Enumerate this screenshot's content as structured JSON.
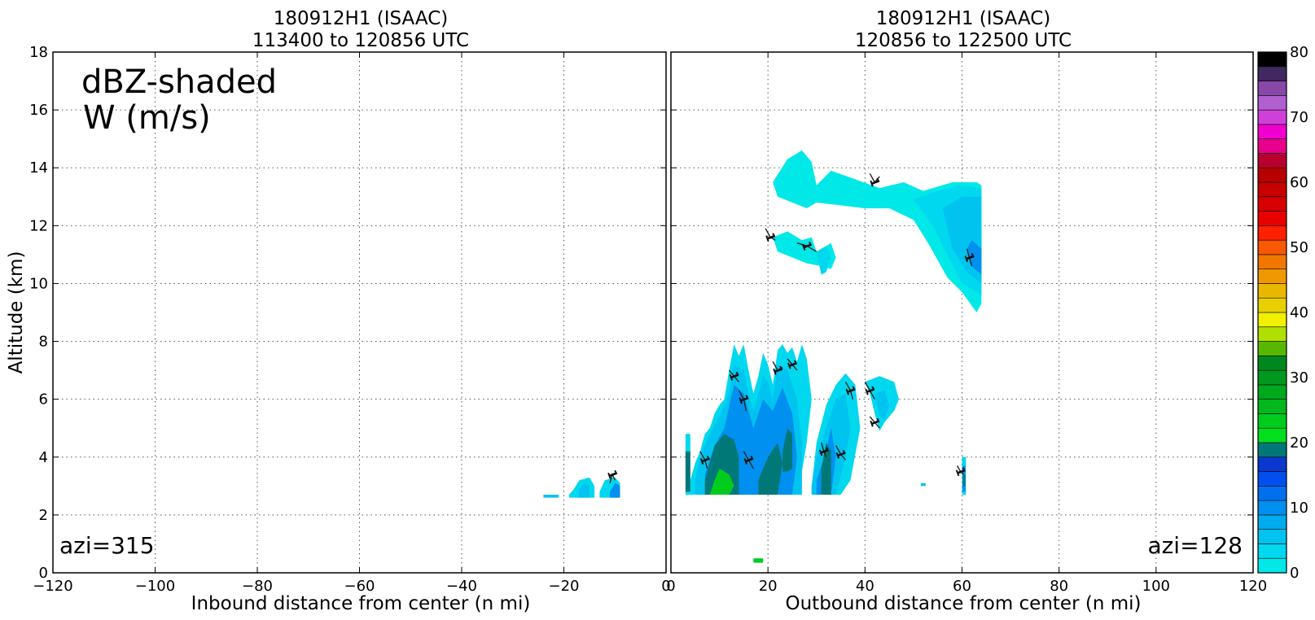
{
  "chart_data": [
    {
      "type": "heatmap",
      "panel": "left",
      "title": [
        "180912H1 (ISAAC)",
        "113400 to 120856 UTC"
      ],
      "xlabel": "Inbound distance from center (n mi)",
      "ylabel": "Altitude (km)",
      "xlim": [
        -120,
        0
      ],
      "ylim": [
        0,
        18
      ],
      "xticks": [
        "−120",
        "−100",
        "−80",
        "−60",
        "−40",
        "−20",
        "0"
      ],
      "yticks": [
        "0",
        "2",
        "4",
        "6",
        "8",
        "10",
        "12",
        "14",
        "16",
        "18"
      ],
      "grid": true,
      "annotations": [
        "dBZ-shaded",
        "W (m/s)",
        "azi=315"
      ],
      "reflectivity_regions": [
        {
          "dbz": 5,
          "x": [
            -24,
            -21,
            -21,
            -24
          ],
          "y": [
            2.6,
            2.6,
            2.7,
            2.7
          ]
        },
        {
          "dbz": 3,
          "x": [
            -19,
            -14,
            -14,
            -15,
            -17,
            -18,
            -19
          ],
          "y": [
            2.6,
            2.6,
            3.0,
            3.3,
            3.2,
            2.9,
            2.7
          ]
        },
        {
          "dbz": 7,
          "x": [
            -17,
            -15,
            -15,
            -16,
            -17
          ],
          "y": [
            2.6,
            2.6,
            3.0,
            3.1,
            2.9
          ]
        },
        {
          "dbz": 3,
          "x": [
            -13,
            -9,
            -9,
            -10,
            -12,
            -13
          ],
          "y": [
            2.6,
            2.6,
            3.1,
            3.3,
            3.2,
            2.8
          ]
        },
        {
          "dbz": 10,
          "x": [
            -11,
            -9,
            -9,
            -10,
            -11
          ],
          "y": [
            2.6,
            2.6,
            3.0,
            3.1,
            2.8
          ]
        }
      ],
      "w_contours": [
        {
          "label": "1",
          "x": [
            -11,
            -10.5,
            -10
          ],
          "y": [
            3.1,
            3.4,
            3.2
          ]
        }
      ]
    },
    {
      "type": "heatmap",
      "panel": "right",
      "title": [
        "180912H1 (ISAAC)",
        "120856 to 122500 UTC"
      ],
      "xlabel": "Outbound distance from center (n mi)",
      "ylabel": "",
      "xlim": [
        0,
        120
      ],
      "ylim": [
        0,
        18
      ],
      "xticks": [
        "0",
        "20",
        "40",
        "60",
        "80",
        "100",
        "120"
      ],
      "yticks": [
        "0",
        "2",
        "4",
        "6",
        "8",
        "10",
        "12",
        "14",
        "16",
        "18"
      ],
      "grid": true,
      "annotations": [
        "azi=128"
      ],
      "reflectivity_regions": [
        {
          "dbz": 0,
          "x": [
            21,
            24,
            27,
            29,
            30,
            33,
            38,
            43,
            48,
            52,
            58,
            63,
            64,
            64,
            63,
            60,
            57,
            55,
            53,
            50,
            45,
            40,
            35,
            30,
            28,
            25,
            22,
            21
          ],
          "y": [
            13.5,
            14.3,
            14.6,
            14.2,
            13.4,
            13.9,
            13.6,
            13.3,
            13.5,
            13.2,
            13.5,
            13.5,
            13.4,
            9.3,
            9.0,
            9.7,
            10.2,
            10.8,
            11.4,
            12.2,
            12.6,
            12.6,
            12.7,
            12.8,
            12.6,
            12.8,
            13.0,
            13.5
          ]
        },
        {
          "dbz": 3,
          "x": [
            50,
            55,
            60,
            64,
            64,
            60,
            57,
            54,
            50
          ],
          "y": [
            12.9,
            13.2,
            13.4,
            13.3,
            9.6,
            10.0,
            11.0,
            12.0,
            12.9
          ]
        },
        {
          "dbz": 5,
          "x": [
            56,
            60,
            64,
            64,
            61,
            58,
            56
          ],
          "y": [
            12.6,
            13.0,
            13.0,
            10.0,
            10.4,
            11.2,
            12.6
          ]
        },
        {
          "dbz": 7,
          "x": [
            58,
            61,
            64,
            64,
            62,
            60,
            58
          ],
          "y": [
            12.0,
            12.4,
            12.0,
            10.2,
            10.4,
            11.0,
            12.0
          ]
        },
        {
          "dbz": 10,
          "x": [
            61,
            62,
            64,
            64,
            62,
            61
          ],
          "y": [
            11.2,
            11.5,
            11.2,
            10.3,
            10.6,
            11.2
          ]
        },
        {
          "dbz": 0,
          "x": [
            21,
            24,
            27,
            29,
            30,
            33,
            34,
            33,
            31,
            28,
            25,
            22,
            21
          ],
          "y": [
            11.6,
            11.8,
            11.5,
            11.6,
            11.1,
            11.4,
            10.9,
            10.5,
            10.6,
            10.7,
            10.9,
            11.1,
            11.6
          ]
        },
        {
          "dbz": 3,
          "x": [
            30,
            32,
            33,
            32,
            31,
            30
          ],
          "y": [
            11.1,
            11.3,
            10.9,
            10.4,
            10.3,
            11.1
          ]
        },
        {
          "dbz": 3,
          "x": [
            3,
            4,
            4,
            3
          ],
          "y": [
            2.7,
            2.7,
            4.8,
            4.8
          ]
        },
        {
          "dbz": 3,
          "x": [
            4,
            6,
            8,
            10,
            11,
            12,
            13,
            14,
            15,
            16,
            17,
            19,
            21,
            23,
            25,
            26,
            27,
            28,
            29,
            28,
            27,
            26,
            25,
            24,
            23,
            22,
            21,
            20,
            19,
            18,
            17,
            16,
            15,
            14,
            13,
            12,
            11,
            10,
            9,
            8,
            7,
            6,
            5,
            4
          ],
          "y": [
            2.7,
            2.7,
            2.7,
            2.7,
            2.7,
            2.7,
            2.7,
            2.7,
            2.7,
            2.7,
            2.7,
            2.7,
            2.7,
            2.7,
            2.7,
            2.7,
            3.5,
            4.5,
            6.0,
            7.4,
            7.9,
            7.3,
            7.8,
            7.6,
            7.9,
            7.7,
            6.5,
            7.2,
            7.6,
            6.8,
            6.2,
            7.0,
            7.9,
            7.5,
            7.9,
            7.0,
            6.0,
            5.8,
            5.5,
            5.0,
            4.8,
            4.2,
            3.8,
            3.2
          ]
        },
        {
          "dbz": 7,
          "x": [
            5,
            7,
            9,
            11,
            13,
            15,
            17,
            19,
            21,
            23,
            25,
            27,
            27,
            26,
            24,
            22,
            21,
            20,
            19,
            17,
            16,
            15,
            13,
            12,
            10,
            8,
            6,
            5
          ],
          "y": [
            2.7,
            2.7,
            2.7,
            2.7,
            2.7,
            2.7,
            2.7,
            2.7,
            2.7,
            2.7,
            2.7,
            2.7,
            4.5,
            6.0,
            7.0,
            7.2,
            6.0,
            6.6,
            6.8,
            5.6,
            6.2,
            7.0,
            7.2,
            6.2,
            5.4,
            4.8,
            4.0,
            3.2
          ]
        },
        {
          "dbz": 10,
          "x": [
            7,
            9,
            11,
            13,
            15,
            17,
            19,
            21,
            23,
            25,
            26,
            25,
            23,
            21,
            19,
            17,
            15,
            13,
            11,
            9,
            7
          ],
          "y": [
            2.7,
            2.7,
            2.7,
            2.7,
            2.7,
            2.7,
            2.7,
            2.7,
            2.7,
            2.7,
            4.0,
            5.5,
            6.4,
            5.6,
            6.0,
            5.0,
            6.2,
            6.5,
            5.0,
            4.4,
            3.4
          ]
        },
        {
          "dbz": 22,
          "x": [
            3,
            4,
            4,
            3
          ],
          "y": [
            2.8,
            2.8,
            4.2,
            4.2
          ]
        },
        {
          "dbz": 22,
          "x": [
            7,
            9,
            11,
            13,
            14,
            14,
            13,
            11,
            9,
            8,
            7
          ],
          "y": [
            2.7,
            2.7,
            2.7,
            2.7,
            2.7,
            4.0,
            4.6,
            4.8,
            4.4,
            3.8,
            3.2
          ]
        },
        {
          "dbz": 27,
          "x": [
            8,
            10,
            12,
            13,
            12,
            10,
            9,
            8
          ],
          "y": [
            2.7,
            2.7,
            2.7,
            3.0,
            3.4,
            3.6,
            3.2,
            2.7
          ]
        },
        {
          "dbz": 22,
          "x": [
            18,
            20,
            22,
            23,
            22,
            20,
            18
          ],
          "y": [
            2.7,
            2.7,
            2.7,
            3.8,
            4.5,
            4.0,
            3.2
          ]
        },
        {
          "dbz": 22,
          "x": [
            23,
            24,
            25,
            25,
            24,
            23
          ],
          "y": [
            3.5,
            3.5,
            3.6,
            4.8,
            5.0,
            4.2
          ]
        },
        {
          "dbz": 3,
          "x": [
            29,
            31,
            33,
            35,
            37,
            39,
            38,
            36,
            34,
            32,
            30,
            29
          ],
          "y": [
            2.7,
            2.7,
            2.7,
            2.7,
            3.2,
            5.0,
            6.5,
            6.9,
            6.5,
            5.8,
            4.5,
            3.0
          ]
        },
        {
          "dbz": 7,
          "x": [
            29,
            31,
            33,
            34,
            36,
            37,
            36,
            34,
            32,
            30,
            29
          ],
          "y": [
            2.7,
            2.7,
            2.7,
            2.7,
            4.0,
            5.0,
            6.2,
            6.0,
            5.0,
            4.0,
            3.0
          ]
        },
        {
          "dbz": 10,
          "x": [
            30,
            32,
            33,
            34,
            33,
            32,
            30
          ],
          "y": [
            2.7,
            2.7,
            2.7,
            4.0,
            5.0,
            4.2,
            3.2
          ]
        },
        {
          "dbz": 22,
          "x": [
            31,
            32,
            33,
            33,
            32,
            31
          ],
          "y": [
            2.7,
            2.7,
            2.7,
            4.2,
            4.5,
            3.6
          ]
        },
        {
          "dbz": 3,
          "x": [
            40,
            43,
            46,
            47,
            46,
            44,
            43,
            42,
            41,
            40
          ],
          "y": [
            6.6,
            6.8,
            6.6,
            6.0,
            5.6,
            5.2,
            4.9,
            5.5,
            6.2,
            6.6
          ]
        },
        {
          "dbz": 7,
          "x": [
            42,
            44,
            45,
            44,
            43,
            42
          ],
          "y": [
            6.2,
            6.3,
            5.8,
            5.3,
            5.4,
            6.2
          ]
        },
        {
          "dbz": 3,
          "x": [
            60,
            60.8,
            60.8,
            60
          ],
          "y": [
            2.7,
            2.7,
            4.0,
            4.0
          ]
        },
        {
          "dbz": 10,
          "x": [
            60.1,
            60.7,
            60.7,
            60.1
          ],
          "y": [
            2.8,
            2.8,
            3.7,
            3.7
          ]
        },
        {
          "dbz": 22,
          "x": [
            60.2,
            60.7,
            60.7,
            60.2
          ],
          "y": [
            3.0,
            3.0,
            3.4,
            3.4
          ]
        },
        {
          "dbz": 5,
          "x": [
            51.5,
            52.5,
            52.5,
            51.5
          ],
          "y": [
            3.0,
            3.0,
            3.1,
            3.1
          ]
        },
        {
          "dbz": 27,
          "x": [
            17,
            19,
            19,
            17
          ],
          "y": [
            0.35,
            0.35,
            0.5,
            0.5
          ]
        }
      ],
      "w_contours": [
        {
          "label": "1",
          "x": [
            41,
            42,
            43
          ],
          "y": [
            13.8,
            13.5,
            13.7
          ]
        },
        {
          "label": "1",
          "x": [
            19.5,
            20.5,
            21.5
          ],
          "y": [
            11.9,
            11.6,
            11.5
          ]
        },
        {
          "label": "1",
          "x": [
            26,
            28,
            30
          ],
          "y": [
            11.4,
            11.3,
            11.1
          ]
        },
        {
          "label": "1",
          "x": [
            61,
            61.5,
            62
          ],
          "y": [
            11.2,
            10.9,
            10.6
          ]
        },
        {
          "label": "1",
          "x": [
            12,
            13,
            14
          ],
          "y": [
            7.0,
            6.8,
            6.6
          ]
        },
        {
          "label": "1",
          "x": [
            21,
            22,
            23
          ],
          "y": [
            7.3,
            7.0,
            7.1
          ]
        },
        {
          "label": "1",
          "x": [
            24,
            25,
            26
          ],
          "y": [
            7.4,
            7.2,
            7.0
          ]
        },
        {
          "label": "1",
          "x": [
            14,
            15,
            15.5
          ],
          "y": [
            6.3,
            6.0,
            5.6
          ]
        },
        {
          "label": "1",
          "x": [
            36,
            37,
            37.5
          ],
          "y": [
            6.6,
            6.3,
            6.0
          ]
        },
        {
          "label": "1",
          "x": [
            40,
            41,
            42
          ],
          "y": [
            6.6,
            6.3,
            6.0
          ]
        },
        {
          "label": "1",
          "x": [
            41,
            42,
            43
          ],
          "y": [
            5.4,
            5.2,
            5.0
          ]
        },
        {
          "label": "1",
          "x": [
            31,
            31.5,
            32
          ],
          "y": [
            4.5,
            4.2,
            4.0
          ]
        },
        {
          "label": "1",
          "x": [
            34,
            35,
            36
          ],
          "y": [
            4.4,
            4.1,
            3.9
          ]
        },
        {
          "label": "1",
          "x": [
            6,
            7,
            7.5
          ],
          "y": [
            4.2,
            3.9,
            3.6
          ]
        },
        {
          "label": "1",
          "x": [
            15,
            16,
            17
          ],
          "y": [
            4.2,
            3.9,
            3.6
          ]
        },
        {
          "label": "1",
          "x": [
            59,
            59.7,
            60.3
          ],
          "y": [
            3.7,
            3.5,
            3.4
          ]
        }
      ]
    }
  ],
  "colorbar": {
    "min": 0,
    "max": 80,
    "step": 2.5,
    "tick_labels": [
      "0",
      "10",
      "20",
      "30",
      "40",
      "50",
      "60",
      "70",
      "80"
    ],
    "colors": [
      "#00e8e8",
      "#00d8ef",
      "#00c4ef",
      "#00aaef",
      "#0090ef",
      "#0070ef",
      "#0050ef",
      "#0838d0",
      "#007878",
      "#00e01e",
      "#00cc1e",
      "#00b81e",
      "#00a81e",
      "#00981e",
      "#00881e",
      "#58b800",
      "#b0e000",
      "#f0f000",
      "#e8d000",
      "#e8b800",
      "#f09800",
      "#f07800",
      "#f85800",
      "#ff2000",
      "#e80000",
      "#d80000",
      "#c80000",
      "#b80000",
      "#b80030",
      "#e8008c",
      "#f000d0",
      "#d040d8",
      "#b060d0",
      "#8848a8",
      "#402860",
      "#000000"
    ]
  }
}
